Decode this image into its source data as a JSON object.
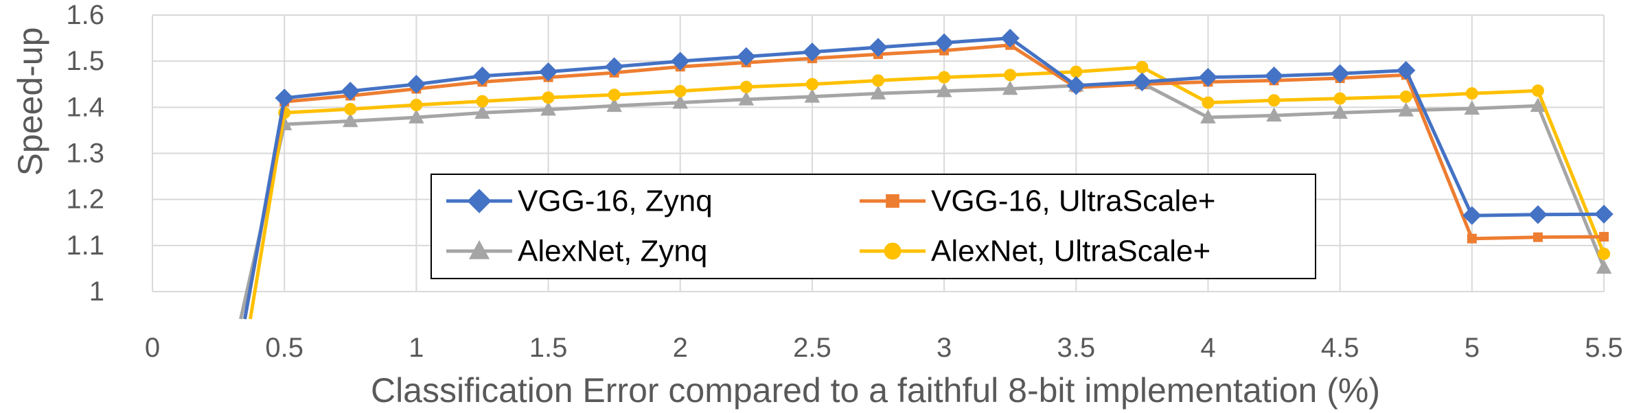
{
  "chart_data": {
    "type": "line",
    "xlabel": "Classification Error compared to a faithful 8-bit implementation (%)",
    "ylabel": "Speed-up",
    "xlim": [
      0,
      5.5
    ],
    "ylim": [
      1,
      1.6
    ],
    "xticks": [
      "0",
      "0.5",
      "1",
      "1.5",
      "2",
      "2.5",
      "3",
      "3.5",
      "4",
      "4.5",
      "5",
      "5.5"
    ],
    "yticks": [
      "1",
      "1.1",
      "1.2",
      "1.3",
      "1.4",
      "1.5",
      "1.6"
    ],
    "grid": true,
    "legend_position": "bottom-center",
    "series": [
      {
        "name": "VGG-16, Zynq",
        "color": "#4472C4",
        "marker": "diamond",
        "x": [
          0.5,
          0.75,
          1,
          1.25,
          1.5,
          1.75,
          2,
          2.25,
          2.5,
          2.75,
          3,
          3.25,
          3.5,
          3.75,
          4,
          4.25,
          4.5,
          4.75,
          5,
          5.25,
          5.5
        ],
        "values": [
          1.42,
          1.435,
          1.45,
          1.468,
          1.477,
          1.488,
          1.5,
          1.51,
          1.52,
          1.53,
          1.54,
          1.55,
          1.447,
          1.455,
          1.465,
          1.468,
          1.473,
          1.48,
          1.165,
          1.167,
          1.168
        ]
      },
      {
        "name": "VGG-16, UltraScale+",
        "color": "#ED7D31",
        "marker": "square",
        "x": [
          0.5,
          0.75,
          1,
          1.25,
          1.5,
          1.75,
          2,
          2.25,
          2.5,
          2.75,
          3,
          3.25,
          3.5,
          3.75,
          4,
          4.25,
          4.5,
          4.75,
          5,
          5.25,
          5.5
        ],
        "values": [
          1.412,
          1.425,
          1.44,
          1.455,
          1.465,
          1.475,
          1.488,
          1.497,
          1.506,
          1.515,
          1.523,
          1.535,
          1.443,
          1.45,
          1.455,
          1.458,
          1.463,
          1.47,
          1.115,
          1.118,
          1.119
        ]
      },
      {
        "name": "AlexNet, Zynq",
        "color": "#A5A5A5",
        "marker": "triangle",
        "x": [
          0.5,
          0.75,
          1,
          1.25,
          1.5,
          1.75,
          2,
          2.25,
          2.5,
          2.75,
          3,
          3.25,
          3.5,
          3.75,
          4,
          4.25,
          4.5,
          4.75,
          5,
          5.25,
          5.5
        ],
        "values": [
          1.363,
          1.37,
          1.378,
          1.388,
          1.395,
          1.403,
          1.41,
          1.417,
          1.423,
          1.43,
          1.435,
          1.44,
          1.447,
          1.452,
          1.378,
          1.382,
          1.388,
          1.393,
          1.397,
          1.403,
          1.052
        ]
      },
      {
        "name": "AlexNet, UltraScale+",
        "color": "#FFC000",
        "marker": "circle",
        "x": [
          0.5,
          0.75,
          1,
          1.25,
          1.5,
          1.75,
          2,
          2.25,
          2.5,
          2.75,
          3,
          3.25,
          3.5,
          3.75,
          4,
          4.25,
          4.5,
          4.75,
          5,
          5.25,
          5.5
        ],
        "values": [
          1.388,
          1.396,
          1.405,
          1.413,
          1.421,
          1.427,
          1.435,
          1.444,
          1.45,
          1.458,
          1.465,
          1.47,
          1.477,
          1.487,
          1.41,
          1.415,
          1.419,
          1.423,
          1.43,
          1.436,
          1.082
        ]
      }
    ]
  }
}
